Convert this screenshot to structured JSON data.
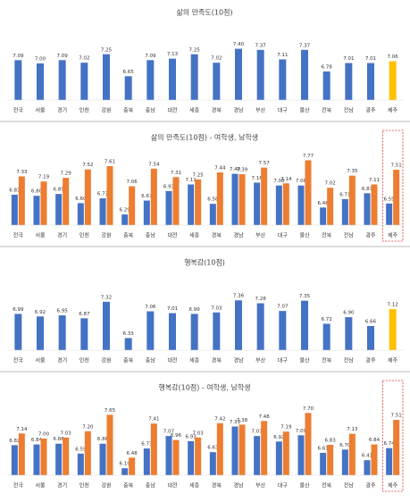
{
  "chart_data": [
    {
      "type": "bar",
      "title": "삶의 만족도(10점)",
      "categories": [
        "전국",
        "서울",
        "경기",
        "인천",
        "강원",
        "충북",
        "충남",
        "대전",
        "세종",
        "경북",
        "경남",
        "부산",
        "대구",
        "울산",
        "전북",
        "전남",
        "광주",
        "제주"
      ],
      "values": [
        7.09,
        7.0,
        7.09,
        7.02,
        7.25,
        6.65,
        7.09,
        7.13,
        7.25,
        7.02,
        7.4,
        7.37,
        7.11,
        7.37,
        6.78,
        7.01,
        7.01,
        7.06
      ],
      "value_labels": [
        "7.09",
        "7.00",
        "7.09",
        "7.02",
        "7.25",
        "6.65",
        "7.09",
        "7.13",
        "7.25",
        "7.02",
        "7.40",
        "7.37",
        "7.11",
        "7.37",
        "6.78",
        "7.01",
        "7.01",
        "7.06"
      ],
      "colors": [
        "#4472c4",
        "#4472c4",
        "#4472c4",
        "#4472c4",
        "#4472c4",
        "#4472c4",
        "#4472c4",
        "#4472c4",
        "#4472c4",
        "#4472c4",
        "#4472c4",
        "#4472c4",
        "#4472c4",
        "#4472c4",
        "#4472c4",
        "#4472c4",
        "#4472c4",
        "#ffc000"
      ],
      "ylim": [
        6,
        8
      ]
    },
    {
      "type": "grouped_bar",
      "title": "삶의 만족도(10점) - 여학생, 남학생",
      "categories": [
        "전국",
        "서울",
        "경기",
        "인천",
        "강원",
        "충북",
        "충남",
        "대전",
        "세종",
        "경북",
        "경남",
        "부산",
        "대구",
        "울산",
        "전북",
        "전남",
        "광주",
        "제주"
      ],
      "series": [
        {
          "color": "#4472c4",
          "values": [
            6.83,
            6.8,
            6.85,
            6.6,
            6.73,
            6.29,
            6.67,
            6.93,
            7.11,
            6.58,
            7.4,
            7.16,
            7.08,
            7.08,
            6.48,
            6.71,
            6.87,
            6.59
          ]
        },
        {
          "color": "#ed7d31",
          "values": [
            7.33,
            7.19,
            7.29,
            7.52,
            7.61,
            7.06,
            7.54,
            7.31,
            7.25,
            7.44,
            7.39,
            7.57,
            7.14,
            7.77,
            7.02,
            7.35,
            7.11,
            7.51
          ]
        }
      ],
      "ylim": [
        6,
        8
      ]
    },
    {
      "type": "bar",
      "title": "행복감(10점)",
      "categories": [
        "전국",
        "서울",
        "경기",
        "인천",
        "강원",
        "충북",
        "충남",
        "대전",
        "세종",
        "경북",
        "경남",
        "부산",
        "대구",
        "울산",
        "전북",
        "전남",
        "광주",
        "제주"
      ],
      "values": [
        6.99,
        6.92,
        6.95,
        6.87,
        7.32,
        6.33,
        7.06,
        7.01,
        6.99,
        7.03,
        7.36,
        7.28,
        7.07,
        7.35,
        6.72,
        6.9,
        6.66,
        7.12
      ],
      "value_labels": [
        "6.99",
        "6.92",
        "6.95",
        "6.87",
        "7.32",
        "6.33",
        "7.06",
        "7.01",
        "6.99",
        "7.03",
        "7.36",
        "7.28",
        "7.07",
        "7.35",
        "6.72",
        "6.90",
        "6.66",
        "7.12"
      ],
      "colors": [
        "#4472c4",
        "#4472c4",
        "#4472c4",
        "#4472c4",
        "#4472c4",
        "#4472c4",
        "#4472c4",
        "#4472c4",
        "#4472c4",
        "#4472c4",
        "#4472c4",
        "#4472c4",
        "#4472c4",
        "#4472c4",
        "#4472c4",
        "#4472c4",
        "#4472c4",
        "#ffc000"
      ],
      "ylim": [
        6,
        8
      ]
    },
    {
      "type": "grouped_bar",
      "title": "행복감(10점) - 여학생, 남학생",
      "categories": [
        "전국",
        "서울",
        "경기",
        "인천",
        "강원",
        "충북",
        "충남",
        "대전",
        "세종",
        "경북",
        "경남",
        "부산",
        "대구",
        "울산",
        "전북",
        "전남",
        "광주",
        "제주"
      ],
      "series": [
        {
          "color": "#4472c4",
          "values": [
            6.82,
            6.84,
            6.86,
            6.59,
            6.86,
            6.19,
            6.73,
            7.07,
            6.93,
            6.63,
            7.33,
            7.07,
            6.92,
            7.09,
            6.61,
            6.7,
            6.41,
            6.74
          ]
        },
        {
          "color": "#ed7d31",
          "values": [
            7.14,
            7.0,
            7.03,
            7.2,
            7.65,
            6.48,
            7.41,
            6.96,
            7.03,
            7.42,
            7.38,
            7.48,
            7.19,
            7.7,
            6.83,
            7.13,
            6.84,
            7.51
          ]
        }
      ],
      "ylim": [
        6,
        8
      ]
    }
  ]
}
